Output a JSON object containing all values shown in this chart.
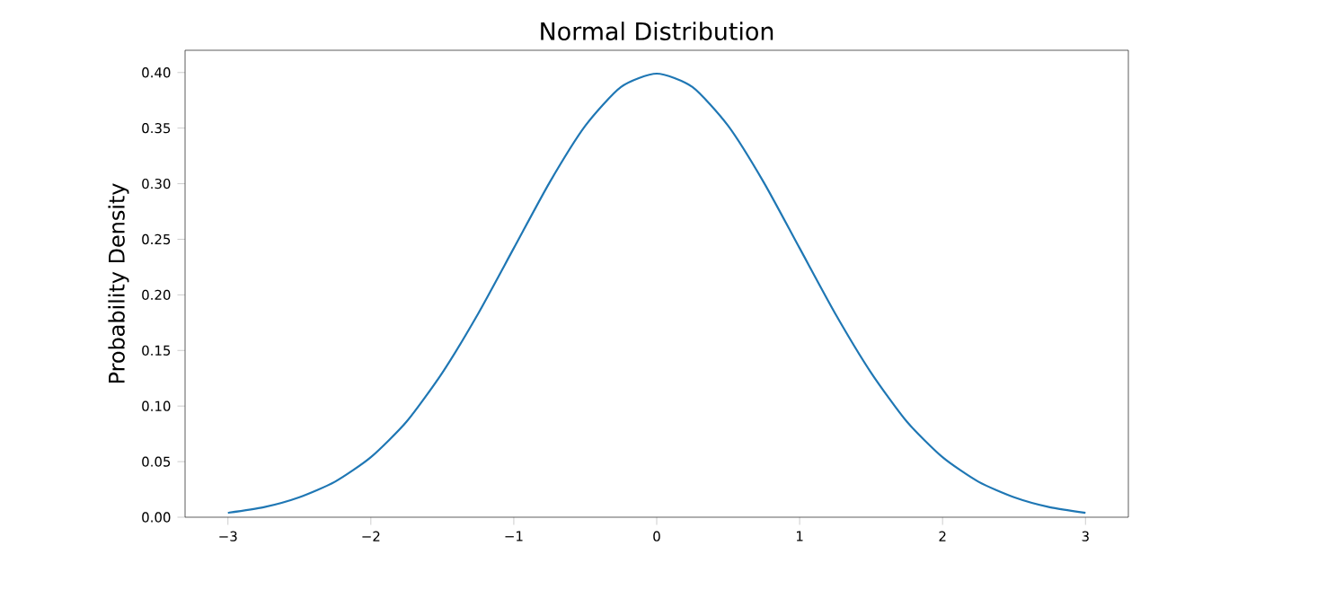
{
  "chart_data": {
    "type": "line",
    "title": "Normal Distribution",
    "ylabel": "Probability Density",
    "x": [
      -3,
      -2.75,
      -2.5,
      -2.25,
      -2,
      -1.75,
      -1.5,
      -1.25,
      -1,
      -0.75,
      -0.5,
      -0.25,
      0,
      0.25,
      0.5,
      0.75,
      1,
      1.25,
      1.5,
      1.75,
      2,
      2.25,
      2.5,
      2.75,
      3
    ],
    "series": [
      {
        "color": "#1f77b4",
        "values": [
          0.004,
          0.009,
          0.018,
          0.032,
          0.054,
          0.086,
          0.13,
          0.183,
          0.242,
          0.301,
          0.352,
          0.387,
          0.399,
          0.387,
          0.352,
          0.301,
          0.242,
          0.183,
          0.13,
          0.086,
          0.054,
          0.032,
          0.018,
          0.009,
          0.004
        ]
      }
    ],
    "xlim": [
      -3.3,
      3.3
    ],
    "ylim": [
      0,
      0.42
    ],
    "xticks": [
      {
        "value": -3,
        "label": "−3"
      },
      {
        "value": -2,
        "label": "−2"
      },
      {
        "value": -1,
        "label": "−1"
      },
      0,
      1,
      2,
      3
    ],
    "yticks": [
      {
        "value": 0,
        "label": "0.00"
      },
      {
        "value": 0.05,
        "label": "0.05"
      },
      {
        "value": 0.1,
        "label": "0.10"
      },
      {
        "value": 0.15,
        "label": "0.15"
      },
      {
        "value": 0.2,
        "label": "0.20"
      },
      {
        "value": 0.25,
        "label": "0.25"
      },
      {
        "value": 0.3,
        "label": "0.30"
      },
      {
        "value": 0.35,
        "label": "0.35"
      },
      {
        "value": 0.4,
        "label": "0.40"
      }
    ],
    "marker": "none",
    "line_style": "solid"
  }
}
